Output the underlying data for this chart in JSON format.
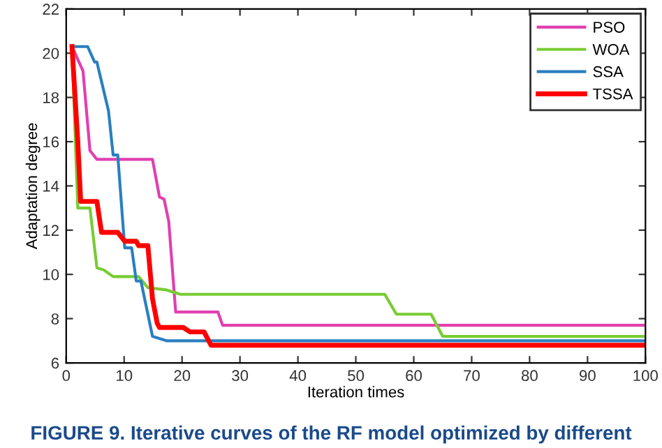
{
  "chart_data": {
    "type": "line",
    "xlabel": "Iteration times",
    "ylabel": "Adaptation degree",
    "xlim": [
      0,
      100
    ],
    "ylim": [
      6,
      22
    ],
    "xticks": [
      0,
      10,
      20,
      30,
      40,
      50,
      60,
      70,
      80,
      90,
      100
    ],
    "yticks": [
      6,
      8,
      10,
      12,
      14,
      16,
      18,
      20,
      22
    ],
    "legend": "top right",
    "grid": false,
    "line_style": "solid",
    "marker": "none",
    "annotations": [
      "FIGURE 9. Iterative curves of the RF model optimized by different"
    ],
    "series": [
      {
        "name": "PSO",
        "color": "#e040b0",
        "x": [
          1,
          2.9,
          4.1,
          5.3,
          14.9,
          16.1,
          16.9,
          17.7,
          18.9,
          26.2,
          27,
          100
        ],
        "values": [
          20.3,
          19.2,
          15.6,
          15.2,
          15.2,
          13.5,
          13.4,
          12.4,
          8.3,
          8.3,
          7.7,
          7.7
        ]
      },
      {
        "name": "WOA",
        "color": "#77cc33",
        "x": [
          1,
          2,
          4.1,
          5.3,
          6.5,
          8.1,
          12.5,
          14.1,
          17.3,
          19.7,
          55,
          57,
          63,
          65,
          100
        ],
        "values": [
          20.3,
          13.0,
          13.0,
          10.3,
          10.2,
          9.9,
          9.9,
          9.4,
          9.3,
          9.1,
          9.1,
          8.2,
          8.2,
          7.2,
          7.2
        ]
      },
      {
        "name": "SSA",
        "color": "#2a7fc0",
        "x": [
          1,
          3.7,
          4.9,
          5.3,
          7.3,
          8.1,
          8.9,
          10.1,
          11.3,
          12.1,
          12.9,
          14.9,
          17.3,
          100
        ],
        "values": [
          20.3,
          20.3,
          19.6,
          19.6,
          17.4,
          15.4,
          15.4,
          11.2,
          11.2,
          9.7,
          9.7,
          7.2,
          7.0,
          7.0
        ]
      },
      {
        "name": "TSSA",
        "color": "#ff0000",
        "x": [
          1,
          2,
          2.5,
          5.3,
          6.1,
          8.9,
          10.1,
          12.1,
          12.5,
          14.1,
          14.9,
          15.7,
          16.1,
          20.2,
          21.4,
          23.8,
          25,
          100
        ],
        "values": [
          20.3,
          16.0,
          13.3,
          13.3,
          11.9,
          11.9,
          11.5,
          11.5,
          11.3,
          11.3,
          8.9,
          7.8,
          7.6,
          7.6,
          7.4,
          7.4,
          6.8,
          6.8
        ]
      }
    ]
  }
}
